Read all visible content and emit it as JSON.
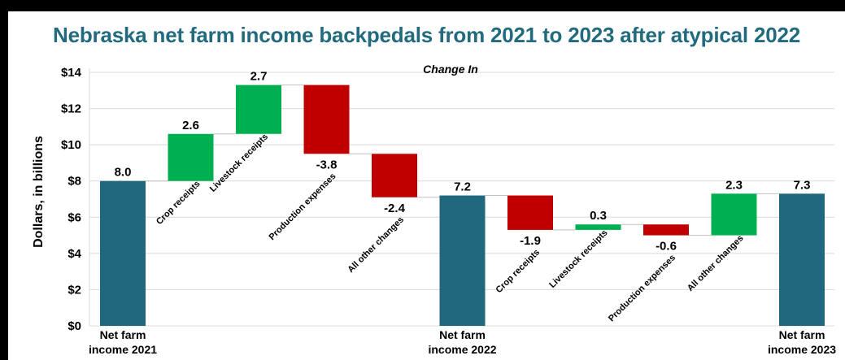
{
  "chart_data": {
    "type": "waterfall",
    "title": "Nebraska net farm income backpedals from 2021 to 2023 after atypical 2022",
    "subtitle": "Change In",
    "ylabel": "Dollars, in billions",
    "ylim": [
      0,
      14
    ],
    "yticks": [
      "$0",
      "$2",
      "$4",
      "$6",
      "$8",
      "$10",
      "$12",
      "$14"
    ],
    "grid": true,
    "colors": {
      "total": "#1f687e",
      "increase": "#00b050",
      "decrease": "#c00000"
    },
    "steps": [
      {
        "label": "Net farm income 2021",
        "label_lines": [
          "Net farm",
          "income 2021"
        ],
        "kind": "total",
        "value": 8.0,
        "value_label": "8.0"
      },
      {
        "label": "Crop receipts",
        "kind": "change",
        "value": 2.6,
        "value_label": "2.6"
      },
      {
        "label": "Livestock receipts",
        "kind": "change",
        "value": 2.7,
        "value_label": "2.7"
      },
      {
        "label": "Production expenses",
        "kind": "change",
        "value": -3.8,
        "value_label": "-3.8"
      },
      {
        "label": "All other changes",
        "kind": "change",
        "value": -2.4,
        "value_label": "-2.4"
      },
      {
        "label": "Net farm income 2022",
        "label_lines": [
          "Net farm",
          "income 2022"
        ],
        "kind": "total",
        "value": 7.2,
        "value_label": "7.2"
      },
      {
        "label": "Crop receipts",
        "kind": "change",
        "value": -1.9,
        "value_label": "-1.9"
      },
      {
        "label": "Livestock receipts",
        "kind": "change",
        "value": 0.3,
        "value_label": "0.3"
      },
      {
        "label": "Production expenses",
        "kind": "change",
        "value": -0.6,
        "value_label": "-0.6"
      },
      {
        "label": "All other changes",
        "kind": "change",
        "value": 2.3,
        "value_label": "2.3"
      },
      {
        "label": "Net farm income 2023",
        "label_lines": [
          "Net farm",
          "income 2023"
        ],
        "kind": "total",
        "value": 7.3,
        "value_label": "7.3"
      }
    ]
  }
}
